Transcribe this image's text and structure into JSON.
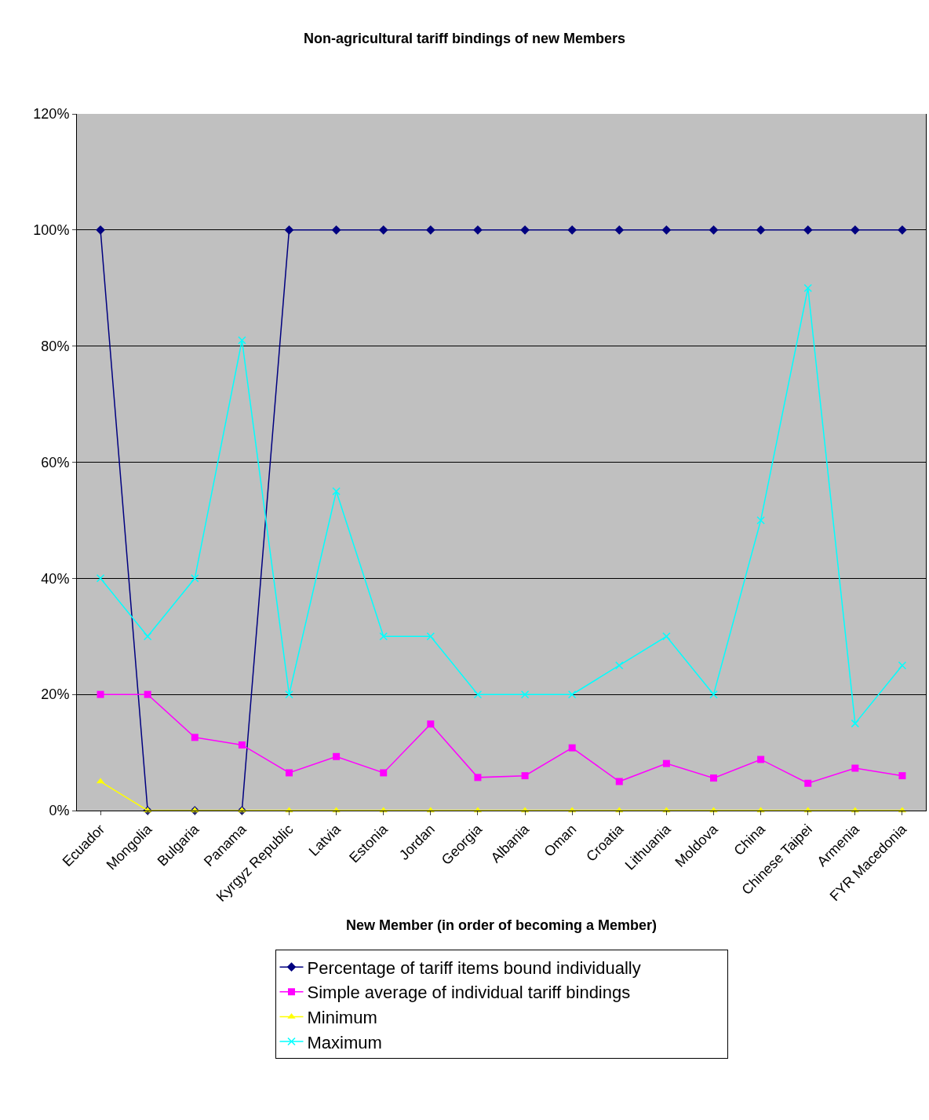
{
  "chart_data": {
    "type": "line",
    "title": "Non-agricultural tariff bindings of new Members",
    "xlabel": "New Member (in order of becoming a Member)",
    "categories": [
      "Ecuador",
      "Mongolia",
      "Bulgaria",
      "Panama",
      "Kyrgyz Republic",
      "Latvia",
      "Estonia",
      "Jordan",
      "Georgia",
      "Albania",
      "Oman",
      "Croatia",
      "Lithuania",
      "Moldova",
      "China",
      "Chinese Taipei",
      "Armenia",
      "FYR Macedonia"
    ],
    "series": [
      {
        "name": "Percentage of tariff items bound individually",
        "color": "#000080",
        "marker": "diamond",
        "values": [
          100,
          0,
          0,
          0,
          100,
          100,
          100,
          100,
          100,
          100,
          100,
          100,
          100,
          100,
          100,
          100,
          100,
          100
        ]
      },
      {
        "name": "Simple average of individual tariff bindings",
        "color": "#ff00ff",
        "marker": "square",
        "values": [
          20,
          20,
          12.6,
          11.3,
          6.5,
          9.3,
          6.5,
          14.9,
          5.7,
          6,
          10.8,
          5,
          8.1,
          5.6,
          8.8,
          4.7,
          7.3,
          6
        ]
      },
      {
        "name": "Minimum",
        "color": "#ffff00",
        "marker": "triangle",
        "values": [
          5,
          0,
          0,
          0,
          0,
          0,
          0,
          0,
          0,
          0,
          0,
          0,
          0,
          0,
          0,
          0,
          0,
          0
        ]
      },
      {
        "name": "Maximum",
        "color": "#00ffff",
        "marker": "cross",
        "values": [
          40,
          30,
          40,
          81,
          20,
          55,
          30,
          30,
          20,
          20,
          20,
          25,
          30,
          20,
          50,
          90,
          15,
          25
        ]
      }
    ],
    "ylim": [
      0,
      120
    ],
    "yticks": [
      {
        "value": 0,
        "label": "0%"
      },
      {
        "value": 20,
        "label": "20%"
      },
      {
        "value": 40,
        "label": "40%"
      },
      {
        "value": 60,
        "label": "60%"
      },
      {
        "value": 80,
        "label": "80%"
      },
      {
        "value": 100,
        "label": "100%"
      },
      {
        "value": 120,
        "label": "120%"
      }
    ],
    "grid": "y",
    "legend": "bottom",
    "line_style": "solid"
  }
}
